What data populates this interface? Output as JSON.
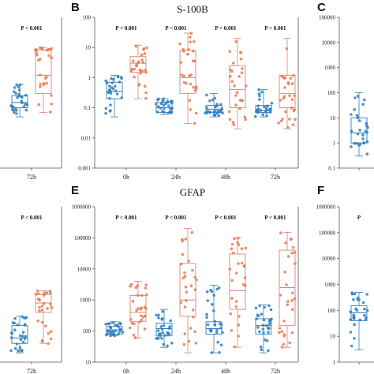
{
  "colors": {
    "group1": "#2f7ebf",
    "group2": "#ea7a4f",
    "group2_box": "#d9837a"
  },
  "chart_data": [
    {
      "id": "A",
      "type": "box",
      "letter": "",
      "title": "",
      "log_scale": true,
      "ylim": [
        0.001,
        100
      ],
      "y_ticks": [],
      "categories": [
        "72h"
      ],
      "p_values": [
        "P < 0.001"
      ],
      "series": [
        {
          "color_key": "group1",
          "boxes": [
            {
              "min": 0.05,
              "q1": 0.1,
              "median": 0.15,
              "q3": 0.25,
              "max": 0.6
            }
          ]
        },
        {
          "color_key": "group2",
          "boxes": [
            {
              "min": 0.07,
              "q1": 0.3,
              "median": 1.2,
              "q3": 8,
              "max": 10
            }
          ]
        }
      ]
    },
    {
      "id": "B",
      "type": "box",
      "letter": "B",
      "title": "S-100B",
      "log_scale": true,
      "ylim": [
        0.001,
        100
      ],
      "y_ticks": [
        "0.001",
        "0.01",
        "0.1",
        "1",
        "10",
        "100"
      ],
      "categories": [
        "0h",
        "24h",
        "48h",
        "72h"
      ],
      "p_values": [
        "P < 0.001",
        "P < 0.001",
        "P < 0.001",
        "P < 0.001"
      ],
      "series": [
        {
          "color_key": "group1",
          "boxes": [
            {
              "min": 0.05,
              "q1": 0.2,
              "median": 0.35,
              "q3": 0.7,
              "max": 1.2
            },
            {
              "min": 0.06,
              "q1": 0.07,
              "median": 0.1,
              "q3": 0.15,
              "max": 0.2
            },
            {
              "min": 0.05,
              "q1": 0.07,
              "median": 0.09,
              "q3": 0.12,
              "max": 0.3
            },
            {
              "min": 0.05,
              "q1": 0.07,
              "median": 0.08,
              "q3": 0.12,
              "max": 0.4
            }
          ]
        },
        {
          "color_key": "group2",
          "boxes": [
            {
              "min": 0.2,
              "q1": 1.5,
              "median": 3,
              "q3": 5,
              "max": 12
            },
            {
              "min": 0.03,
              "q1": 0.3,
              "median": 1,
              "q3": 8,
              "max": 30
            },
            {
              "min": 0.02,
              "q1": 0.1,
              "median": 0.4,
              "q3": 2.5,
              "max": 20
            },
            {
              "min": 0.02,
              "q1": 0.1,
              "median": 0.3,
              "q3": 1.2,
              "max": 20
            }
          ]
        }
      ]
    },
    {
      "id": "C",
      "type": "box",
      "letter": "C",
      "title": "",
      "log_scale": true,
      "ylim": [
        0.1,
        100000
      ],
      "y_ticks": [
        "0.1",
        "1",
        "10",
        "100",
        "1000",
        "10000",
        "100000"
      ],
      "categories": [
        ""
      ],
      "p_values": [
        ""
      ],
      "series": [
        {
          "color_key": "group1",
          "boxes": [
            {
              "min": 0.3,
              "q1": 1,
              "median": 2.5,
              "q3": 10,
              "max": 100
            }
          ]
        }
      ]
    },
    {
      "id": "D",
      "type": "box",
      "letter": "",
      "title": "",
      "log_scale": true,
      "ylim": [
        10,
        1000000
      ],
      "y_ticks": [],
      "categories": [
        "72h"
      ],
      "p_values": [
        "P < 0.001"
      ],
      "series": [
        {
          "color_key": "group1",
          "boxes": [
            {
              "min": 20,
              "q1": 40,
              "median": 60,
              "q3": 150,
              "max": 300
            }
          ]
        },
        {
          "color_key": "group2",
          "boxes": [
            {
              "min": 40,
              "q1": 400,
              "median": 800,
              "q3": 1500,
              "max": 2000
            }
          ]
        }
      ]
    },
    {
      "id": "E",
      "type": "box",
      "letter": "E",
      "title": "GFAP",
      "log_scale": true,
      "ylim": [
        10,
        1000000
      ],
      "y_ticks": [
        "10",
        "100",
        "1000",
        "10000",
        "100000",
        "1000000"
      ],
      "categories": [
        "0h",
        "24h",
        "48h",
        "72h"
      ],
      "p_values": [
        "P < 0.001",
        "P < 0.001",
        "P < 0.001",
        "P < 0.001"
      ],
      "series": [
        {
          "color_key": "group1",
          "boxes": [
            {
              "min": 70,
              "q1": 80,
              "median": 110,
              "q3": 140,
              "max": 200
            },
            {
              "min": 30,
              "q1": 70,
              "median": 120,
              "q3": 180,
              "max": 500
            },
            {
              "min": 20,
              "q1": 80,
              "median": 120,
              "q3": 200,
              "max": 3000
            },
            {
              "min": 20,
              "q1": 80,
              "median": 150,
              "q3": 250,
              "max": 700
            }
          ]
        },
        {
          "color_key": "group2",
          "boxes": [
            {
              "min": 60,
              "q1": 200,
              "median": 400,
              "q3": 1400,
              "max": 4000
            },
            {
              "min": 20,
              "q1": 300,
              "median": 1000,
              "q3": 15000,
              "max": 200000
            },
            {
              "min": 30,
              "q1": 500,
              "median": 2000,
              "q3": 30000,
              "max": 100000
            },
            {
              "min": 30,
              "q1": 150,
              "median": 2500,
              "q3": 40000,
              "max": 150000
            }
          ]
        }
      ]
    },
    {
      "id": "F",
      "type": "box",
      "letter": "F",
      "title": "",
      "log_scale": true,
      "ylim": [
        1,
        1000000
      ],
      "y_ticks": [
        "1",
        "10",
        "100",
        "1000",
        "10000",
        "100000",
        "1000000"
      ],
      "categories": [
        ""
      ],
      "p_values": [
        "P"
      ],
      "series": [
        {
          "color_key": "group1",
          "boxes": [
            {
              "min": 3,
              "q1": 40,
              "median": 80,
              "q3": 150,
              "max": 500
            }
          ]
        }
      ]
    }
  ]
}
